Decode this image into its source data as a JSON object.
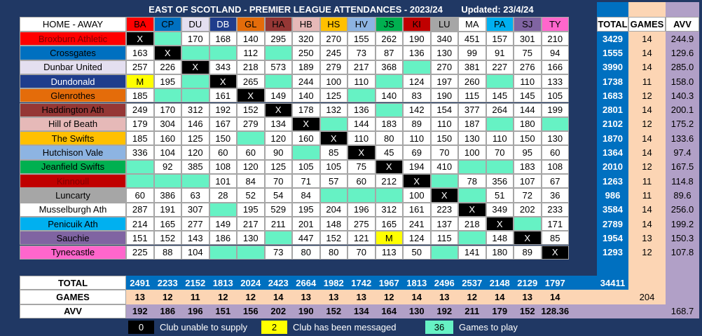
{
  "header": {
    "title": "EAST OF SCOTLAND - PREMIER LEAGUE ATTENDANCES - 2023/24",
    "updated": "Updated: 23/4/24"
  },
  "table": {
    "corner": "HOME - AWAY",
    "columns": [
      "BA",
      "CP",
      "DU",
      "DB",
      "GL",
      "HA",
      "HB",
      "HS",
      "HV",
      "JS",
      "KI",
      "LU",
      "MA",
      "PA",
      "SJ",
      "TY"
    ],
    "summary_columns": [
      "TOTAL",
      "GAMES",
      "AVV"
    ],
    "rows": [
      {
        "team": "Broxburn Athletic",
        "cells": [
          "X",
          null,
          "170",
          "168",
          "140",
          "295",
          "320",
          "270",
          "155",
          "262",
          "190",
          "340",
          "451",
          "157",
          "301",
          "210"
        ],
        "total": "3429",
        "games": "14",
        "avv": "244.9"
      },
      {
        "team": "Crossgates",
        "cells": [
          "163",
          "X",
          null,
          null,
          "112",
          null,
          "250",
          "245",
          "73",
          "87",
          "136",
          "130",
          "99",
          "91",
          "75",
          "94"
        ],
        "total": "1555",
        "games": "14",
        "avv": "129.6"
      },
      {
        "team": "Dunbar United",
        "cells": [
          "257",
          "226",
          "X",
          "343",
          "218",
          "573",
          "189",
          "279",
          "217",
          "368",
          null,
          "270",
          "381",
          "227",
          "276",
          "166"
        ],
        "total": "3990",
        "games": "14",
        "avv": "285.0"
      },
      {
        "team": "Dundonald",
        "cells": [
          "M",
          "195",
          null,
          "X",
          "265",
          null,
          "244",
          "100",
          "110",
          null,
          "124",
          "197",
          "260",
          null,
          "110",
          "133"
        ],
        "total": "1738",
        "games": "11",
        "avv": "158.0"
      },
      {
        "team": "Glenrothes",
        "cells": [
          "185",
          null,
          null,
          "161",
          "X",
          "149",
          "140",
          "125",
          null,
          "140",
          "83",
          "190",
          "115",
          "145",
          "145",
          "105"
        ],
        "total": "1683",
        "games": "12",
        "avv": "140.3"
      },
      {
        "team": "Haddington Ath",
        "cells": [
          "249",
          "170",
          "312",
          "192",
          "152",
          "X",
          "178",
          "132",
          "136",
          null,
          "142",
          "154",
          "377",
          "264",
          "144",
          "199"
        ],
        "total": "2801",
        "games": "14",
        "avv": "200.1"
      },
      {
        "team": "Hill of Beath",
        "cells": [
          "179",
          "304",
          "146",
          "167",
          "279",
          "134",
          "X",
          null,
          "144",
          "183",
          "89",
          "110",
          "187",
          null,
          "180",
          null
        ],
        "total": "2102",
        "games": "12",
        "avv": "175.2"
      },
      {
        "team": "The Swifts",
        "cells": [
          "185",
          "160",
          "125",
          "150",
          null,
          "120",
          "160",
          "X",
          "110",
          "80",
          "110",
          "150",
          "130",
          "110",
          "150",
          "130"
        ],
        "total": "1870",
        "games": "14",
        "avv": "133.6"
      },
      {
        "team": "Hutchison Vale",
        "cells": [
          "336",
          "104",
          "120",
          "60",
          "60",
          "90",
          null,
          "85",
          "X",
          "45",
          "69",
          "70",
          "100",
          "70",
          "95",
          "60"
        ],
        "total": "1364",
        "games": "14",
        "avv": "97.4"
      },
      {
        "team": "Jeanfield Swifts",
        "cells": [
          null,
          "92",
          "385",
          "108",
          "120",
          "125",
          "105",
          "105",
          "75",
          "X",
          "194",
          "410",
          null,
          null,
          "183",
          "108"
        ],
        "total": "2010",
        "games": "12",
        "avv": "167.5"
      },
      {
        "team": "Kinnoull",
        "cells": [
          null,
          null,
          null,
          "101",
          "84",
          "70",
          "71",
          "57",
          "60",
          "212",
          "X",
          null,
          "78",
          "356",
          "107",
          "67"
        ],
        "total": "1263",
        "games": "11",
        "avv": "114.8"
      },
      {
        "team": "Luncarty",
        "cells": [
          "60",
          "386",
          "63",
          "28",
          "52",
          "54",
          "84",
          null,
          null,
          null,
          "100",
          "X",
          null,
          "51",
          "72",
          "36"
        ],
        "total": "986",
        "games": "11",
        "avv": "89.6"
      },
      {
        "team": "Musselburgh Ath",
        "cells": [
          "287",
          "191",
          "307",
          null,
          "195",
          "529",
          "195",
          "204",
          "196",
          "312",
          "161",
          "223",
          "X",
          "349",
          "202",
          "233"
        ],
        "total": "3584",
        "games": "14",
        "avv": "256.0"
      },
      {
        "team": "Penicuik Ath",
        "cells": [
          "214",
          "165",
          "277",
          "149",
          "217",
          "211",
          "201",
          "148",
          "275",
          "165",
          "241",
          "137",
          "218",
          "X",
          null,
          "171"
        ],
        "total": "2789",
        "games": "14",
        "avv": "199.2"
      },
      {
        "team": "Sauchie",
        "cells": [
          "151",
          "152",
          "143",
          "186",
          "130",
          null,
          "447",
          "152",
          "121",
          "M",
          "124",
          "115",
          null,
          "148",
          "X",
          "85"
        ],
        "total": "1954",
        "games": "13",
        "avv": "150.3"
      },
      {
        "team": "Tynecastle",
        "cells": [
          "225",
          "88",
          "104",
          null,
          null,
          "73",
          "80",
          "80",
          "70",
          "113",
          "50",
          null,
          "141",
          "180",
          "89",
          "X"
        ],
        "total": "1293",
        "games": "12",
        "avv": "107.8"
      }
    ]
  },
  "footer": {
    "rows": [
      {
        "label": "TOTAL",
        "values": [
          "2491",
          "2233",
          "2152",
          "1813",
          "2024",
          "2423",
          "2664",
          "1982",
          "1742",
          "1967",
          "1813",
          "2496",
          "2537",
          "2148",
          "2129",
          "1797"
        ],
        "grand": "34411"
      },
      {
        "label": "GAMES",
        "values": [
          "13",
          "12",
          "11",
          "12",
          "12",
          "14",
          "13",
          "13",
          "13",
          "12",
          "14",
          "13",
          "12",
          "14",
          "13",
          "14"
        ],
        "grand": "204"
      },
      {
        "label": "AVV",
        "values": [
          "192",
          "186",
          "196",
          "151",
          "156",
          "202",
          "190",
          "152",
          "134",
          "164",
          "130",
          "192",
          "211",
          "179",
          "152",
          "128.36"
        ],
        "grand": "168.7"
      }
    ]
  },
  "legend": [
    {
      "key": "0",
      "text": "Club unable to supply"
    },
    {
      "key": "2",
      "text": "Club has been messaged"
    },
    {
      "key": "36",
      "text": "Games to play"
    }
  ]
}
